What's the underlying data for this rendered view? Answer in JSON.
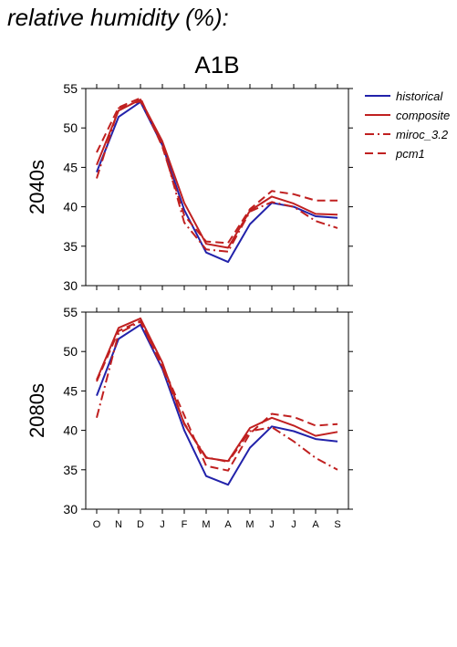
{
  "page": {
    "title": "relative humidity (%):"
  },
  "colors": {
    "historical": "#2222aa",
    "composite": "#c02020",
    "miroc_3.2": "#c02020",
    "pcm1": "#c02020"
  },
  "chart_data": [
    {
      "type": "line",
      "title": "A1B",
      "ylabel": "2040s",
      "categories": [
        "O",
        "N",
        "D",
        "J",
        "F",
        "M",
        "A",
        "M",
        "J",
        "J",
        "A",
        "S"
      ],
      "ylim": [
        30,
        55
      ],
      "yticks": [
        30,
        35,
        40,
        45,
        50,
        55
      ],
      "grid": false,
      "legend": "right",
      "series": [
        {
          "name": "historical",
          "style": "solid",
          "values": [
            44.4,
            51.4,
            53.3,
            47.8,
            39.6,
            34.2,
            33.0,
            37.8,
            40.5,
            40.0,
            38.8,
            38.6
          ]
        },
        {
          "name": "composite",
          "style": "solid",
          "values": [
            45.3,
            52.2,
            53.6,
            48.3,
            40.5,
            35.3,
            34.8,
            39.5,
            41.3,
            40.4,
            39.1,
            39.0
          ]
        },
        {
          "name": "miroc_3.2",
          "style": "dashdot",
          "values": [
            43.6,
            52.5,
            53.4,
            48.0,
            38.0,
            34.6,
            34.3,
            39.4,
            40.6,
            40.0,
            38.2,
            37.3
          ]
        },
        {
          "name": "pcm1",
          "style": "dashed",
          "values": [
            46.9,
            52.6,
            53.8,
            47.6,
            38.9,
            35.6,
            35.4,
            39.7,
            42.0,
            41.6,
            40.8,
            40.8
          ]
        }
      ]
    },
    {
      "type": "line",
      "title": "",
      "ylabel": "2080s",
      "categories": [
        "O",
        "N",
        "D",
        "J",
        "F",
        "M",
        "A",
        "M",
        "J",
        "J",
        "A",
        "S"
      ],
      "ylim": [
        30,
        55
      ],
      "yticks": [
        30,
        35,
        40,
        45,
        50,
        55
      ],
      "grid": false,
      "series": [
        {
          "name": "historical",
          "style": "solid",
          "values": [
            44.4,
            51.6,
            53.4,
            47.8,
            40.0,
            34.2,
            33.1,
            37.8,
            40.5,
            39.9,
            38.9,
            38.6
          ]
        },
        {
          "name": "composite",
          "style": "solid",
          "values": [
            46.4,
            53.0,
            54.2,
            48.6,
            40.8,
            36.5,
            36.1,
            40.3,
            41.6,
            40.6,
            39.3,
            39.8
          ]
        },
        {
          "name": "miroc_3.2",
          "style": "dashdot",
          "values": [
            41.6,
            52.3,
            53.8,
            48.0,
            40.9,
            36.6,
            36.0,
            39.9,
            40.4,
            38.6,
            36.5,
            35.0
          ]
        },
        {
          "name": "pcm1",
          "style": "dashed",
          "values": [
            46.2,
            52.6,
            53.9,
            48.2,
            41.9,
            35.5,
            34.9,
            39.6,
            42.1,
            41.7,
            40.6,
            40.8
          ]
        }
      ]
    }
  ]
}
